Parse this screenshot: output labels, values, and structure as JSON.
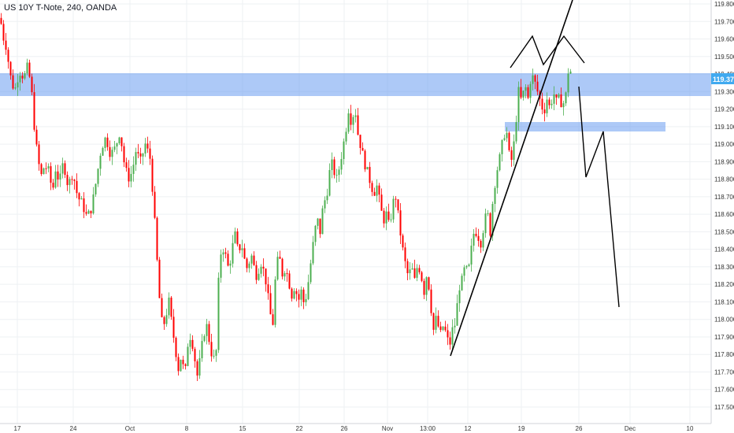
{
  "title": "US 10Y T-Note, 240, OANDA",
  "last_price": "119.373",
  "colors": {
    "up": "#4caf50",
    "down": "#ff0000",
    "zone": "#6a9df0",
    "price_badge": "#41aaf0",
    "grid": "#eef0f3",
    "axis_text": "#333333"
  },
  "chart_data": {
    "type": "candlestick",
    "ylim": [
      117.45,
      119.82
    ],
    "y_ticks": [
      "119.800",
      "119.700",
      "119.600",
      "119.500",
      "119.400",
      "119.300",
      "119.200",
      "119.100",
      "119.000",
      "118.900",
      "118.800",
      "118.700",
      "118.600",
      "118.500",
      "118.400",
      "118.300",
      "118.200",
      "118.100",
      "118.000",
      "117.900",
      "117.800",
      "117.700",
      "117.600",
      "117.500"
    ],
    "x_ticks": [
      "17",
      "24",
      "Oct",
      "8",
      "15",
      "22",
      "26",
      "Nov",
      "13:00",
      "12",
      "19",
      "26",
      "Dec",
      "10"
    ],
    "price_path": [
      [
        0,
        119.72
      ],
      [
        3,
        119.62
      ],
      [
        8,
        119.55
      ],
      [
        12,
        119.4
      ],
      [
        18,
        119.3
      ],
      [
        24,
        119.42
      ],
      [
        30,
        119.38
      ],
      [
        35,
        119.45
      ],
      [
        40,
        119.28
      ],
      [
        44,
        119.05
      ],
      [
        48,
        118.9
      ],
      [
        52,
        118.82
      ],
      [
        56,
        118.88
      ],
      [
        62,
        118.84
      ],
      [
        66,
        118.72
      ],
      [
        70,
        118.86
      ],
      [
        75,
        118.78
      ],
      [
        80,
        118.9
      ],
      [
        86,
        118.76
      ],
      [
        92,
        118.84
      ],
      [
        98,
        118.7
      ],
      [
        104,
        118.66
      ],
      [
        110,
        118.58
      ],
      [
        116,
        118.64
      ],
      [
        122,
        118.8
      ],
      [
        128,
        118.98
      ],
      [
        134,
        119.04
      ],
      [
        140,
        118.94
      ],
      [
        146,
        118.98
      ],
      [
        152,
        119.08
      ],
      [
        156,
        118.92
      ],
      [
        160,
        118.84
      ],
      [
        164,
        118.8
      ],
      [
        168,
        118.86
      ],
      [
        172,
        118.96
      ],
      [
        178,
        118.9
      ],
      [
        184,
        119.0
      ],
      [
        190,
        118.92
      ],
      [
        194,
        118.7
      ],
      [
        198,
        118.4
      ],
      [
        202,
        118.12
      ],
      [
        206,
        117.94
      ],
      [
        210,
        118.02
      ],
      [
        214,
        118.1
      ],
      [
        218,
        117.96
      ],
      [
        222,
        117.84
      ],
      [
        226,
        117.72
      ],
      [
        230,
        117.8
      ],
      [
        234,
        117.66
      ],
      [
        238,
        117.86
      ],
      [
        242,
        117.92
      ],
      [
        246,
        117.8
      ],
      [
        250,
        117.68
      ],
      [
        254,
        117.78
      ],
      [
        258,
        117.92
      ],
      [
        262,
        117.96
      ],
      [
        266,
        117.86
      ],
      [
        270,
        117.76
      ],
      [
        274,
        117.82
      ],
      [
        278,
        118.34
      ],
      [
        282,
        118.42
      ],
      [
        286,
        118.36
      ],
      [
        290,
        118.28
      ],
      [
        294,
        118.4
      ],
      [
        298,
        118.48
      ],
      [
        302,
        118.38
      ],
      [
        306,
        118.44
      ],
      [
        310,
        118.34
      ],
      [
        314,
        118.28
      ],
      [
        318,
        118.38
      ],
      [
        322,
        118.3
      ],
      [
        326,
        118.24
      ],
      [
        330,
        118.34
      ],
      [
        334,
        118.28
      ],
      [
        338,
        118.2
      ],
      [
        342,
        118.04
      ],
      [
        346,
        117.98
      ],
      [
        350,
        118.3
      ],
      [
        354,
        118.36
      ],
      [
        358,
        118.26
      ],
      [
        362,
        118.3
      ],
      [
        366,
        118.22
      ],
      [
        370,
        118.14
      ],
      [
        374,
        118.2
      ],
      [
        378,
        118.1
      ],
      [
        382,
        118.16
      ],
      [
        386,
        118.08
      ],
      [
        390,
        118.18
      ],
      [
        394,
        118.32
      ],
      [
        398,
        118.46
      ],
      [
        402,
        118.58
      ],
      [
        406,
        118.5
      ],
      [
        410,
        118.66
      ],
      [
        414,
        118.7
      ],
      [
        418,
        118.84
      ],
      [
        422,
        118.9
      ],
      [
        426,
        118.78
      ],
      [
        430,
        118.86
      ],
      [
        434,
        118.96
      ],
      [
        438,
        119.06
      ],
      [
        442,
        119.2
      ],
      [
        446,
        119.12
      ],
      [
        450,
        119.22
      ],
      [
        454,
        119.06
      ],
      [
        458,
        118.98
      ],
      [
        462,
        118.9
      ],
      [
        466,
        118.84
      ],
      [
        470,
        118.78
      ],
      [
        474,
        118.72
      ],
      [
        478,
        118.76
      ],
      [
        482,
        118.66
      ],
      [
        486,
        118.56
      ],
      [
        490,
        118.6
      ],
      [
        494,
        118.52
      ],
      [
        498,
        118.66
      ],
      [
        502,
        118.7
      ],
      [
        506,
        118.56
      ],
      [
        510,
        118.42
      ],
      [
        514,
        118.32
      ],
      [
        518,
        118.24
      ],
      [
        522,
        118.3
      ],
      [
        526,
        118.22
      ],
      [
        530,
        118.32
      ],
      [
        534,
        118.26
      ],
      [
        538,
        118.16
      ],
      [
        542,
        118.28
      ],
      [
        546,
        118.1
      ],
      [
        550,
        117.94
      ],
      [
        554,
        118.02
      ],
      [
        558,
        117.9
      ],
      [
        562,
        117.96
      ],
      [
        566,
        117.92
      ],
      [
        570,
        117.84
      ],
      [
        574,
        117.94
      ],
      [
        578,
        117.98
      ],
      [
        582,
        118.18
      ],
      [
        586,
        118.22
      ],
      [
        590,
        118.3
      ],
      [
        594,
        118.26
      ],
      [
        598,
        118.4
      ],
      [
        602,
        118.52
      ],
      [
        606,
        118.48
      ],
      [
        610,
        118.44
      ],
      [
        614,
        118.54
      ],
      [
        618,
        118.62
      ],
      [
        622,
        118.5
      ],
      [
        626,
        118.72
      ],
      [
        630,
        118.84
      ],
      [
        634,
        118.92
      ],
      [
        638,
        119.02
      ],
      [
        642,
        119.1
      ],
      [
        646,
        118.94
      ],
      [
        650,
        118.9
      ],
      [
        654,
        119.1
      ],
      [
        658,
        119.3
      ],
      [
        662,
        119.24
      ],
      [
        666,
        119.34
      ],
      [
        670,
        119.26
      ],
      [
        674,
        119.4
      ],
      [
        678,
        119.36
      ],
      [
        682,
        119.3
      ],
      [
        686,
        119.24
      ],
      [
        690,
        119.18
      ],
      [
        694,
        119.26
      ],
      [
        698,
        119.2
      ],
      [
        702,
        119.3
      ],
      [
        706,
        119.24
      ],
      [
        710,
        119.26
      ],
      [
        714,
        119.22
      ],
      [
        718,
        119.28
      ],
      [
        722,
        119.46
      ],
      [
        726,
        119.37
      ]
    ]
  }
}
